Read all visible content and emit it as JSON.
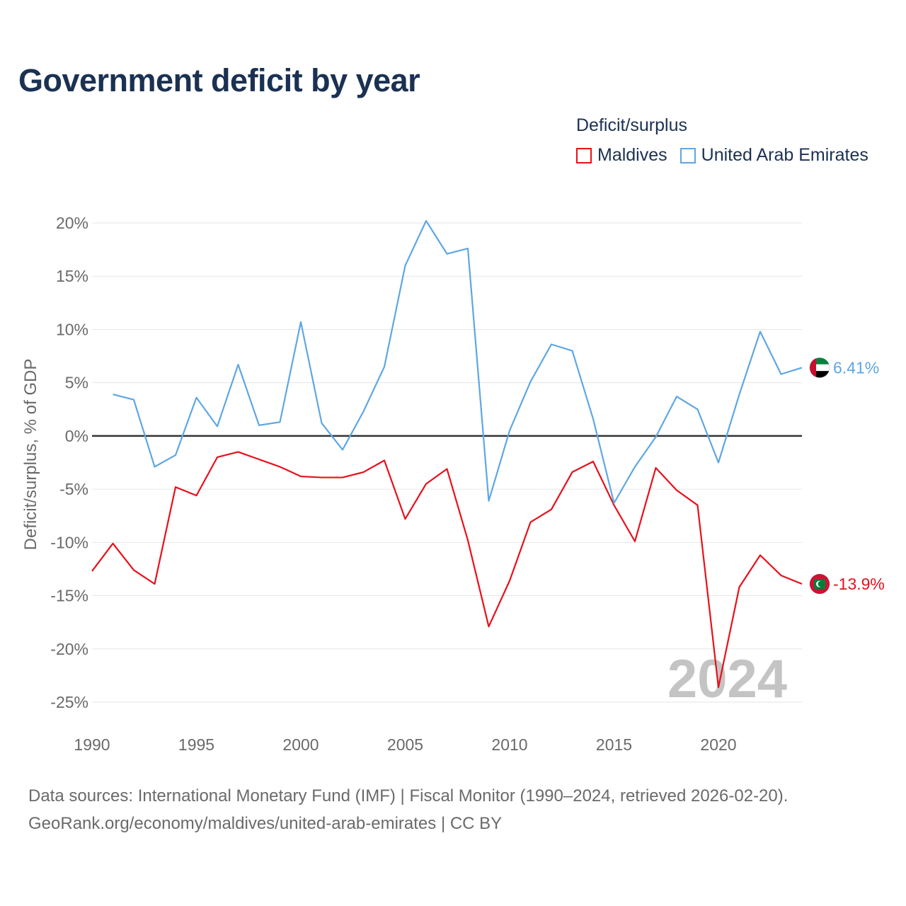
{
  "title": "Government deficit by year",
  "legend": {
    "title": "Deficit/surplus",
    "items": [
      {
        "name": "Maldives",
        "color": "#e8101b"
      },
      {
        "name": "United Arab Emirates",
        "color": "#5ea7e3"
      }
    ]
  },
  "chart_data": {
    "type": "line",
    "title": "Government deficit by year",
    "xlabel": "",
    "ylabel": "Deficit/surplus, % of GDP",
    "xlim": [
      1990,
      2024
    ],
    "ylim": [
      -25,
      20
    ],
    "xticks": [
      1990,
      1995,
      2000,
      2005,
      2010,
      2015,
      2020
    ],
    "xtick_labels": [
      "1990",
      "1995",
      "2000",
      "2005",
      "2010",
      "2015",
      "2020"
    ],
    "yticks": [
      20,
      15,
      10,
      5,
      0,
      -5,
      -10,
      -15,
      -20,
      -25
    ],
    "ytick_labels": [
      "20%",
      "15%",
      "10%",
      "5%",
      "0%",
      "-5%",
      "-10%",
      "-15%",
      "-20%",
      "-25%"
    ],
    "grid": true,
    "year_watermark": "2024",
    "series": [
      {
        "name": "Maldives",
        "color": "#e8101b",
        "end_label": "-13.9%",
        "flag_icon": "maldives-flag-icon",
        "x": [
          1990,
          1991,
          1992,
          1993,
          1994,
          1995,
          1996,
          1997,
          1998,
          1999,
          2000,
          2001,
          2002,
          2003,
          2004,
          2005,
          2006,
          2007,
          2008,
          2009,
          2010,
          2011,
          2012,
          2013,
          2014,
          2015,
          2016,
          2017,
          2018,
          2019,
          2020,
          2021,
          2022,
          2023,
          2024
        ],
        "values": [
          -12.7,
          -10.1,
          -12.6,
          -13.9,
          -4.8,
          -5.6,
          -2.0,
          -1.5,
          -2.2,
          -2.9,
          -3.8,
          -3.9,
          -3.9,
          -3.4,
          -2.3,
          -7.8,
          -4.5,
          -3.1,
          -9.8,
          -17.9,
          -13.6,
          -8.1,
          -6.9,
          -3.4,
          -2.4,
          -6.5,
          -9.9,
          -3.0,
          -5.1,
          -6.5,
          -23.6,
          -14.2,
          -11.2,
          -13.1,
          -13.9
        ]
      },
      {
        "name": "United Arab Emirates",
        "color": "#5ea7e3",
        "end_label": "6.41%",
        "flag_icon": "uae-flag-icon",
        "x": [
          1991,
          1992,
          1993,
          1994,
          1995,
          1996,
          1997,
          1998,
          1999,
          2000,
          2001,
          2002,
          2003,
          2004,
          2005,
          2006,
          2007,
          2008,
          2009,
          2010,
          2011,
          2012,
          2013,
          2014,
          2015,
          2016,
          2017,
          2018,
          2019,
          2020,
          2021,
          2022,
          2023,
          2024
        ],
        "values": [
          3.9,
          3.4,
          -2.9,
          -1.8,
          3.6,
          0.9,
          6.7,
          1.0,
          1.3,
          10.7,
          1.2,
          -1.3,
          2.3,
          6.5,
          16.0,
          20.2,
          17.1,
          17.6,
          -6.1,
          0.5,
          5.1,
          8.6,
          8.0,
          1.6,
          -6.3,
          -2.9,
          -0.1,
          3.7,
          2.5,
          -2.5,
          3.9,
          9.8,
          5.8,
          6.41
        ]
      }
    ]
  },
  "source": {
    "line1": "Data sources: International Monetary Fund (IMF) | Fiscal Monitor (1990–2024, retrieved 2026-02-20).",
    "line2": "GeoRank.org/economy/maldives/united-arab-emirates | CC BY"
  }
}
